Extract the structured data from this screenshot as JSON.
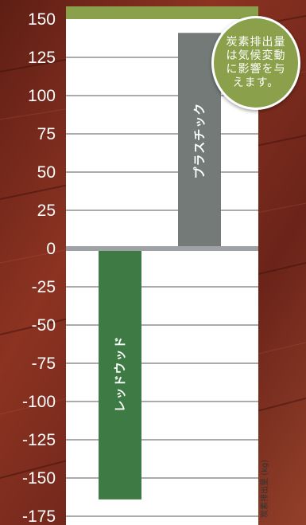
{
  "chart_data": {
    "type": "bar",
    "categories": [
      "レッドウッド",
      "プラスチック"
    ],
    "values": [
      -164,
      141
    ],
    "ylabel": "炭素排出量 (kg)",
    "ylim": [
      -175,
      150
    ],
    "yticks": [
      "150",
      "125",
      "100",
      "75",
      "50",
      "25",
      "0",
      "-25",
      "-50",
      "-75",
      "-100",
      "-125",
      "-150",
      "-175"
    ],
    "bar_colors": [
      "#3d7a44",
      "#737a78"
    ],
    "grid": true
  },
  "callout": {
    "text": "炭素排出量は気候変動に影響を与えます。",
    "color": "#8aa04a"
  }
}
